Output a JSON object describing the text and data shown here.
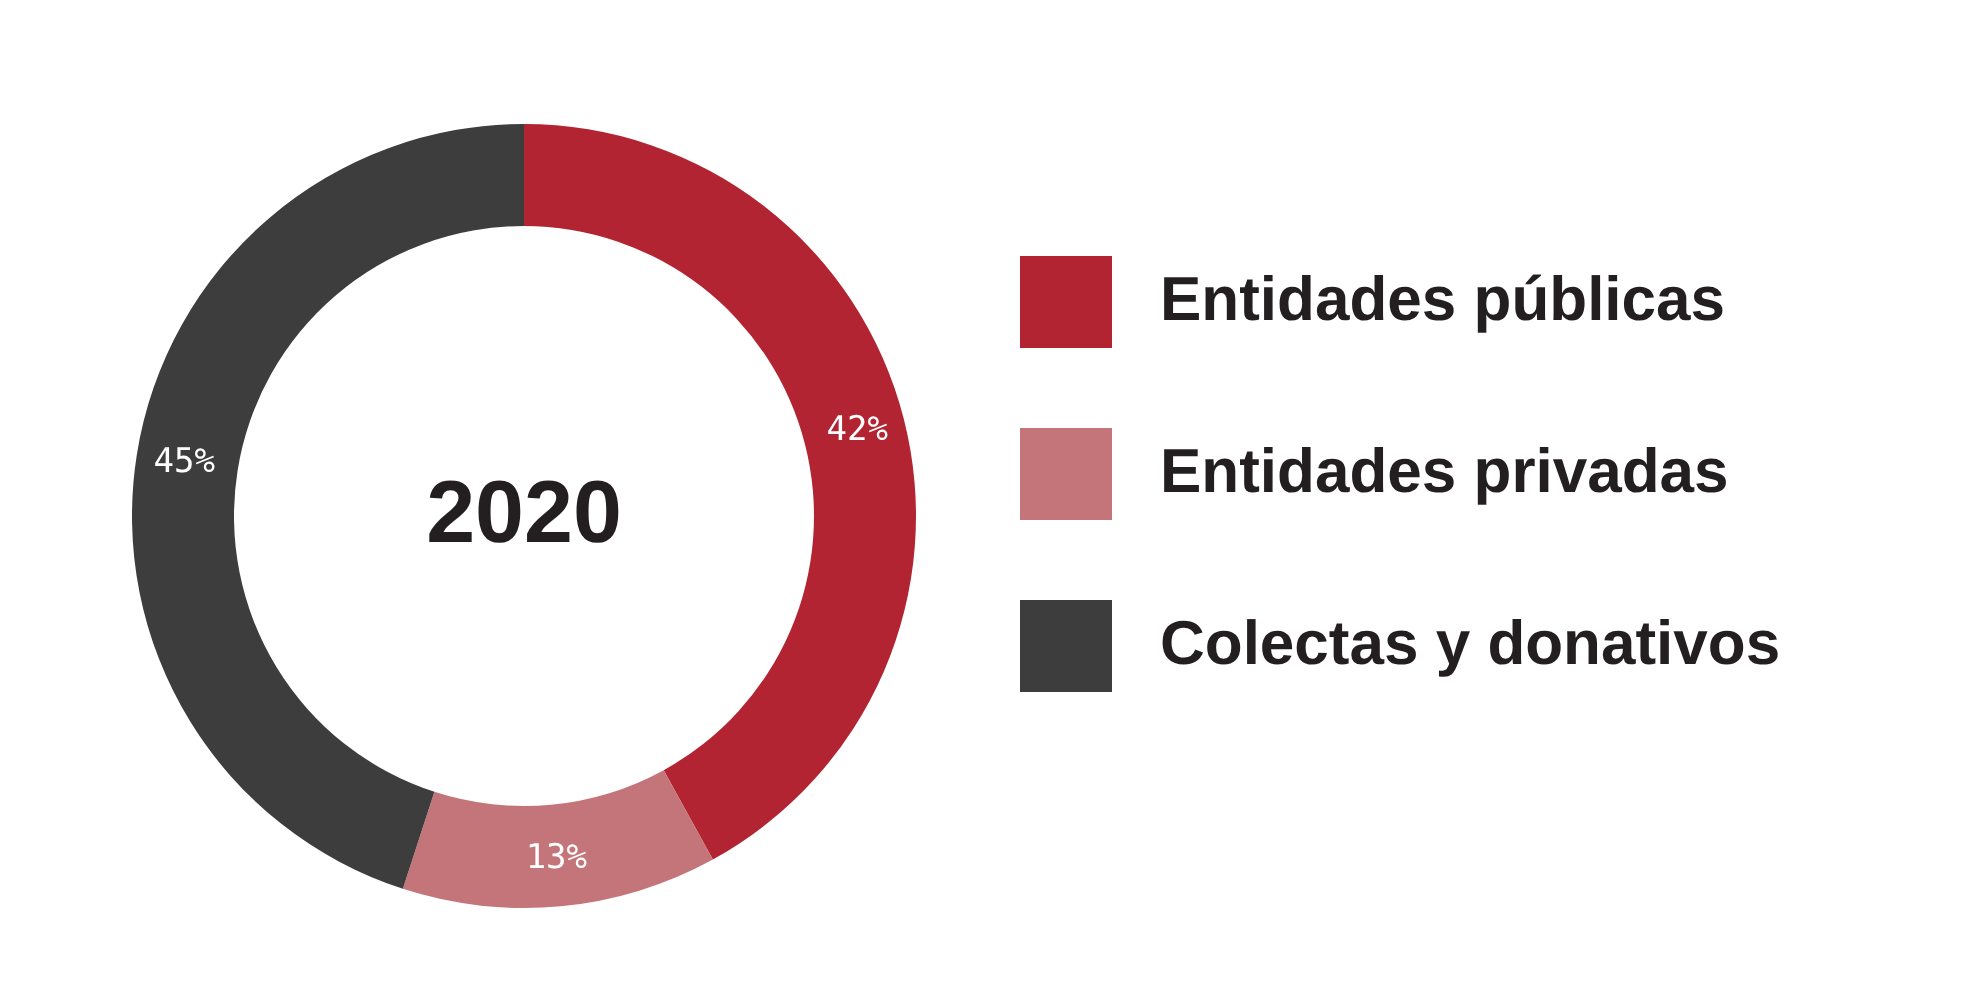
{
  "chart_data": {
    "type": "donut",
    "title": "2020",
    "categories": [
      "Entidades públicas",
      "Entidades privadas",
      "Colectas y donativos"
    ],
    "values": [
      42,
      13,
      45
    ],
    "colors": [
      "#b22432",
      "#c4757a",
      "#3d3d3d"
    ],
    "value_labels": [
      "42%",
      "13%",
      "45%"
    ],
    "legend": "right"
  }
}
